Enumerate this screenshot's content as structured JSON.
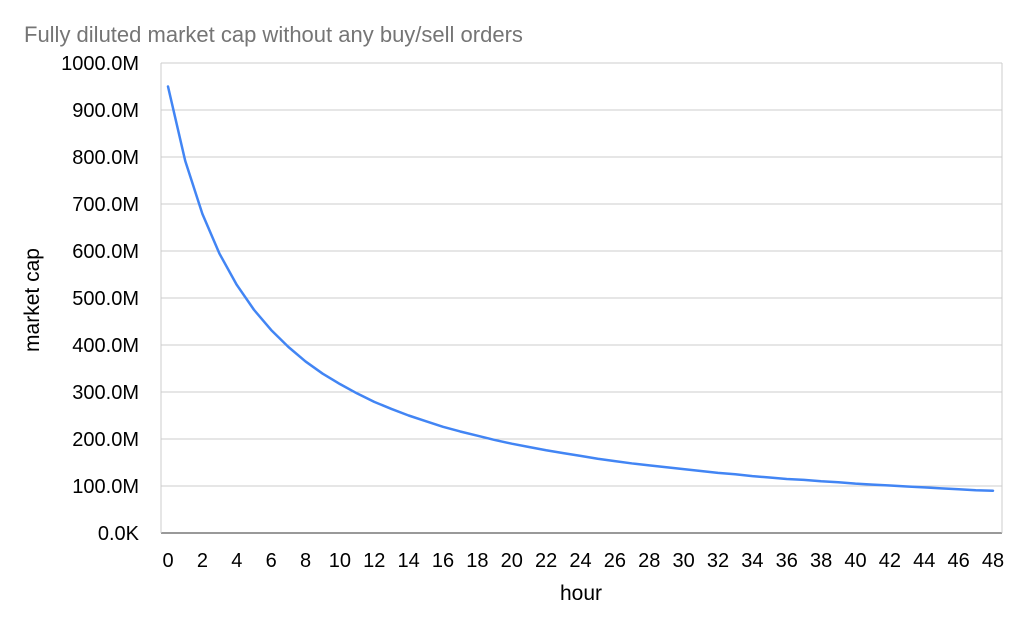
{
  "chart_data": {
    "type": "line",
    "title": "Fully diluted market cap without any buy/sell orders",
    "xlabel": "hour",
    "ylabel": "market cap",
    "xlim": [
      0,
      48
    ],
    "ylim": [
      0,
      1000
    ],
    "x_ticks": [
      "0",
      "2",
      "4",
      "6",
      "8",
      "10",
      "12",
      "14",
      "16",
      "18",
      "20",
      "22",
      "24",
      "26",
      "28",
      "30",
      "32",
      "34",
      "36",
      "38",
      "40",
      "42",
      "44",
      "46",
      "48"
    ],
    "y_ticks": [
      "0.0K",
      "100.0M",
      "200.0M",
      "300.0M",
      "400.0M",
      "500.0M",
      "600.0M",
      "700.0M",
      "800.0M",
      "900.0M",
      "1000.0M"
    ],
    "grid": true,
    "line_color": "#4285f4",
    "series": [
      {
        "x": [
          0,
          1,
          2,
          3,
          4,
          5,
          6,
          7,
          8,
          9,
          10,
          11,
          12,
          13,
          14,
          15,
          16,
          17,
          18,
          19,
          20,
          21,
          22,
          23,
          24,
          25,
          26,
          27,
          28,
          29,
          30,
          31,
          32,
          33,
          34,
          35,
          36,
          37,
          38,
          39,
          40,
          41,
          42,
          43,
          44,
          45,
          46,
          47,
          48
        ],
        "values": [
          950,
          792,
          679,
          594,
          528,
          475,
          432,
          396,
          365,
          339,
          317,
          297,
          279,
          264,
          250,
          238,
          226,
          216,
          207,
          198,
          190,
          183,
          176,
          170,
          164,
          158,
          153,
          148,
          144,
          140,
          136,
          132,
          128,
          125,
          121,
          118,
          115,
          113,
          110,
          108,
          105,
          103,
          101,
          99,
          97,
          95,
          93,
          91,
          90
        ]
      }
    ]
  }
}
